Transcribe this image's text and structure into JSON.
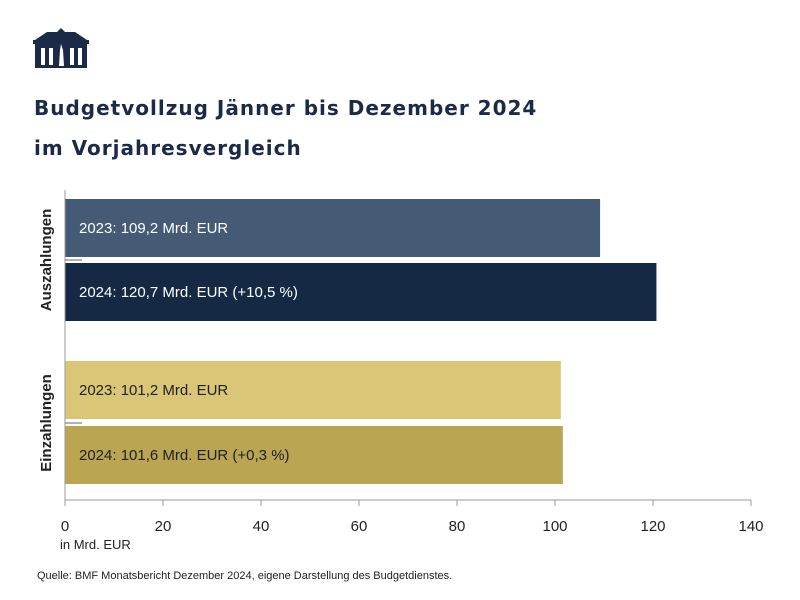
{
  "header": {
    "title_line1": "Budgetvollzug Jänner bis Dezember 2024",
    "title_line2": "im Vorjahresvergleich",
    "logo": "parliament-building-logo"
  },
  "chart_data": {
    "type": "bar",
    "orientation": "horizontal",
    "categories": [
      "Auszahlungen",
      "Einzahlungen"
    ],
    "bars": [
      {
        "category": "Auszahlungen",
        "year": "2023",
        "value": 109.2,
        "label": "2023: 109,2 Mrd. EUR",
        "color": "#445a75",
        "text_color": "#ffffff"
      },
      {
        "category": "Auszahlungen",
        "year": "2024",
        "value": 120.7,
        "label": "2024: 120,7 Mrd. EUR (+10,5 %)",
        "color": "#152945",
        "text_color": "#ffffff"
      },
      {
        "category": "Einzahlungen",
        "year": "2023",
        "value": 101.2,
        "label": "2023: 101,2 Mrd. EUR",
        "color": "#d9c677",
        "text_color": "#222222"
      },
      {
        "category": "Einzahlungen",
        "year": "2024",
        "value": 101.6,
        "label": "2024: 101,6 Mrd. EUR (+0,3 %)",
        "color": "#b9a552",
        "text_color": "#222222"
      }
    ],
    "xlim": [
      0,
      140
    ],
    "xticks": [
      "0",
      "20",
      "40",
      "60",
      "80",
      "100",
      "120",
      "140"
    ],
    "xlabel": "in Mrd. EUR",
    "grid": false
  },
  "footer": {
    "source": "Quelle: BMF Monatsbericht Dezember 2024, eigene Darstellung des Budgetdienstes."
  }
}
